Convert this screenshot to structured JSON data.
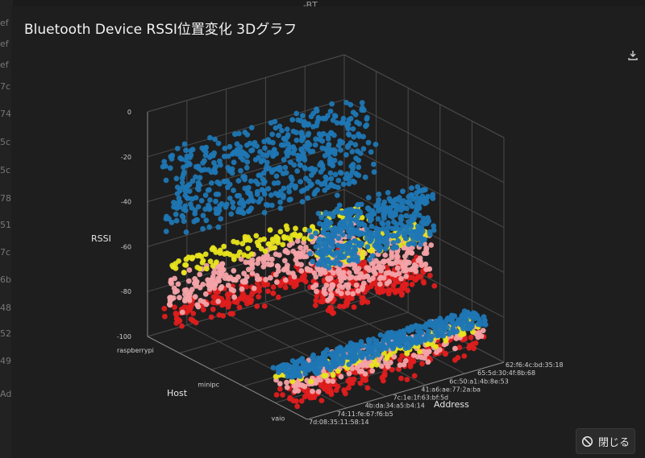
{
  "background": {
    "top_label": "-BT",
    "left_strip": [
      "ef",
      "ef",
      "ef",
      "7c",
      "74",
      "5c",
      "5c",
      "78",
      "51",
      "7c",
      "6b",
      "48",
      "52",
      "49",
      "Ad"
    ]
  },
  "dialog": {
    "title": "Bluetooth Device RSSI位置変化 3Dグラフ",
    "close_label": "閉じる",
    "download_icon": "download-icon",
    "close_icon": "prohibit-icon"
  },
  "chart_data": {
    "type": "scatter",
    "projection": "3d",
    "zlabel": "RSSI",
    "ylabel": "Host",
    "xlabel": "Address",
    "z_ticks": [
      "0",
      "-20",
      "-40",
      "-60",
      "-80",
      "-100"
    ],
    "zlim": [
      -100,
      0
    ],
    "hosts": [
      "raspberrypi",
      "minipc",
      "vaio"
    ],
    "addresses": [
      "7d:08:35:11:58:14",
      "74:11:fe:67:f6:b5",
      "4b:da:34:a5:b4:14",
      "7c:1e:1f:63:bf:5d",
      "41:a6:ae:77:2a:ba",
      "6c:50:a1:4b:8e:53",
      "65:5d:30:4f:8b:68",
      "62:f6:4c:bd:35:18"
    ],
    "grid": true,
    "series_colors": {
      "blue": "#1f77b4",
      "yellow": "#e8e41e",
      "pink": "#f4a3a8",
      "red": "#e01e1e"
    },
    "clusters": [
      {
        "host": "raspberrypi",
        "blue": [
          -50,
          -15
        ],
        "yellow": [
          -68,
          -62
        ],
        "pink": [
          -82,
          -70
        ],
        "red": [
          -90,
          -82
        ]
      },
      {
        "host": "minipc",
        "blue": [
          -62,
          -40
        ],
        "yellow": [
          -62,
          -55
        ],
        "pink": [
          -76,
          -60
        ],
        "red": [
          -82,
          -72
        ]
      },
      {
        "host": "vaio",
        "blue": [
          -88,
          -82
        ],
        "yellow": [
          -91,
          -87
        ],
        "pink": [
          -95,
          -85
        ],
        "red": [
          -100,
          -90
        ]
      }
    ]
  }
}
